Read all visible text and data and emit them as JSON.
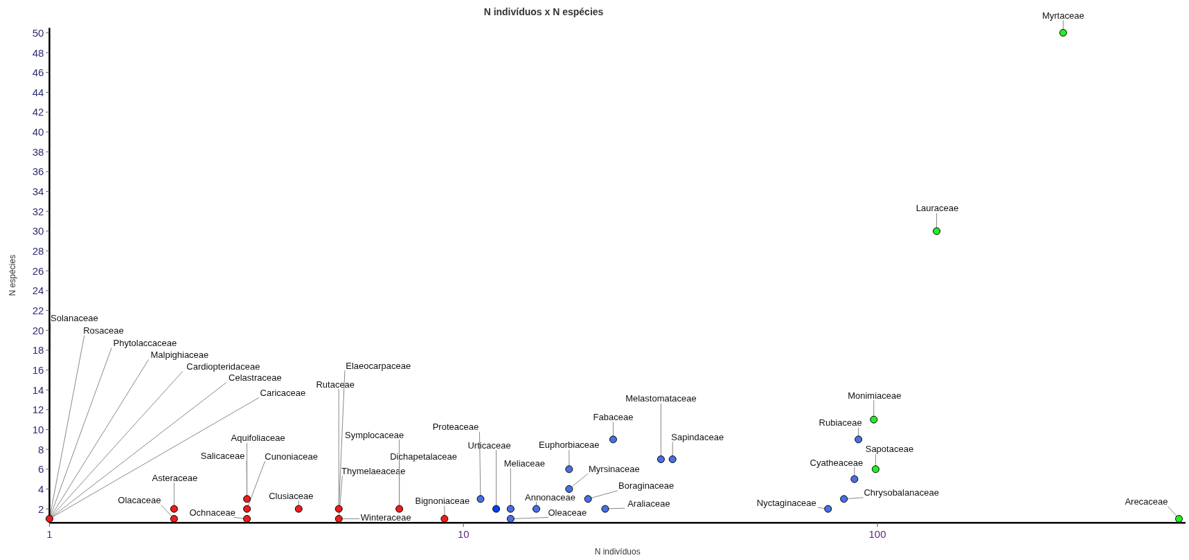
{
  "chart_data": {
    "type": "scatter",
    "title": "N indivíduos x N espécies",
    "xlabel": "N indivíduos",
    "ylabel": "N espécies",
    "log": "x",
    "marker": "circle",
    "xlim": [
      1,
      555
    ],
    "xticks": [
      1,
      10,
      100
    ],
    "ylim": [
      0.6,
      50.5
    ],
    "yticks": [
      2,
      4,
      6,
      8,
      10,
      12,
      14,
      16,
      18,
      20,
      22,
      24,
      26,
      28,
      30,
      32,
      34,
      36,
      38,
      40,
      42,
      44,
      46,
      48,
      50
    ],
    "series": [
      {
        "color": "#ee1c1c",
        "x": [
          1,
          2,
          2,
          3,
          3,
          3,
          4,
          5,
          5,
          7,
          9
        ],
        "values": [
          1,
          2,
          1,
          3,
          2,
          1,
          2,
          2,
          1,
          2,
          1
        ]
      },
      {
        "color": "#4a6fe3",
        "x": [
          11,
          13,
          13,
          15,
          18,
          18,
          20,
          22,
          23,
          30,
          32,
          76,
          83,
          88,
          90
        ],
        "values": [
          3,
          2,
          1,
          2,
          6,
          4,
          3,
          2,
          9,
          7,
          7,
          2,
          3,
          5,
          9
        ]
      },
      {
        "color": "#0a3cf0",
        "x": [
          12
        ],
        "values": [
          2
        ]
      },
      {
        "color": "#22ee22",
        "x": [
          98,
          99,
          139,
          281,
          535
        ],
        "values": [
          11,
          6,
          30,
          50,
          1
        ]
      }
    ],
    "annotations": [
      {
        "text": "Solanaceae",
        "x": 1,
        "y": 1
      },
      {
        "text": "Rosaceae",
        "x": 1,
        "y": 1
      },
      {
        "text": "Phytolaccaceae",
        "x": 1,
        "y": 1
      },
      {
        "text": "Malpighiaceae",
        "x": 1,
        "y": 1
      },
      {
        "text": "Cardiopteridaceae",
        "x": 1,
        "y": 1
      },
      {
        "text": "Celastraceae",
        "x": 1,
        "y": 1
      },
      {
        "text": "Caricaceae",
        "x": 1,
        "y": 1
      },
      {
        "text": "Asteraceae",
        "x": 2,
        "y": 2
      },
      {
        "text": "Olacaceae",
        "x": 2,
        "y": 1
      },
      {
        "text": "Aquifoliaceae",
        "x": 3,
        "y": 3
      },
      {
        "text": "Salicaceae",
        "x": 3,
        "y": 3
      },
      {
        "text": "Cunoniaceae",
        "x": 3,
        "y": 2
      },
      {
        "text": "Ochnaceae",
        "x": 3,
        "y": 1
      },
      {
        "text": "Clusiaceae",
        "x": 4,
        "y": 2
      },
      {
        "text": "Rutaceae",
        "x": 5,
        "y": 2
      },
      {
        "text": "Elaeocarpaceae",
        "x": 5,
        "y": 2
      },
      {
        "text": "Thymelaeaceae",
        "x": 5,
        "y": 1
      },
      {
        "text": "Winteraceae",
        "x": 5,
        "y": 1
      },
      {
        "text": "Symplocaceae",
        "x": 7,
        "y": 2
      },
      {
        "text": "Dichapetalaceae",
        "x": 7,
        "y": 2
      },
      {
        "text": "Bignoniaceae",
        "x": 9,
        "y": 1
      },
      {
        "text": "Proteaceae",
        "x": 11,
        "y": 3
      },
      {
        "text": "Urticaceae",
        "x": 12,
        "y": 2
      },
      {
        "text": "Meliaceae",
        "x": 13,
        "y": 2
      },
      {
        "text": "Oleaceae",
        "x": 13,
        "y": 1
      },
      {
        "text": "Annonaceae",
        "x": 15,
        "y": 2
      },
      {
        "text": "Euphorbiaceae",
        "x": 18,
        "y": 6
      },
      {
        "text": "Myrsinaceae",
        "x": 18,
        "y": 4
      },
      {
        "text": "Boraginaceae",
        "x": 20,
        "y": 3
      },
      {
        "text": "Araliaceae",
        "x": 22,
        "y": 2
      },
      {
        "text": "Fabaceae",
        "x": 23,
        "y": 9
      },
      {
        "text": "Melastomataceae",
        "x": 30,
        "y": 7
      },
      {
        "text": "Sapindaceae",
        "x": 32,
        "y": 7
      },
      {
        "text": "Nyctaginaceae",
        "x": 76,
        "y": 2
      },
      {
        "text": "Chrysobalanaceae",
        "x": 83,
        "y": 3
      },
      {
        "text": "Cyatheaceae",
        "x": 88,
        "y": 5
      },
      {
        "text": "Rubiaceae",
        "x": 90,
        "y": 9
      },
      {
        "text": "Monimiaceae",
        "x": 98,
        "y": 11
      },
      {
        "text": "Sapotaceae",
        "x": 99,
        "y": 6
      },
      {
        "text": "Lauraceae",
        "x": 139,
        "y": 30
      },
      {
        "text": "Myrtaceae",
        "x": 281,
        "y": 50
      },
      {
        "text": "Arecaceae",
        "x": 535,
        "y": 1
      }
    ]
  }
}
